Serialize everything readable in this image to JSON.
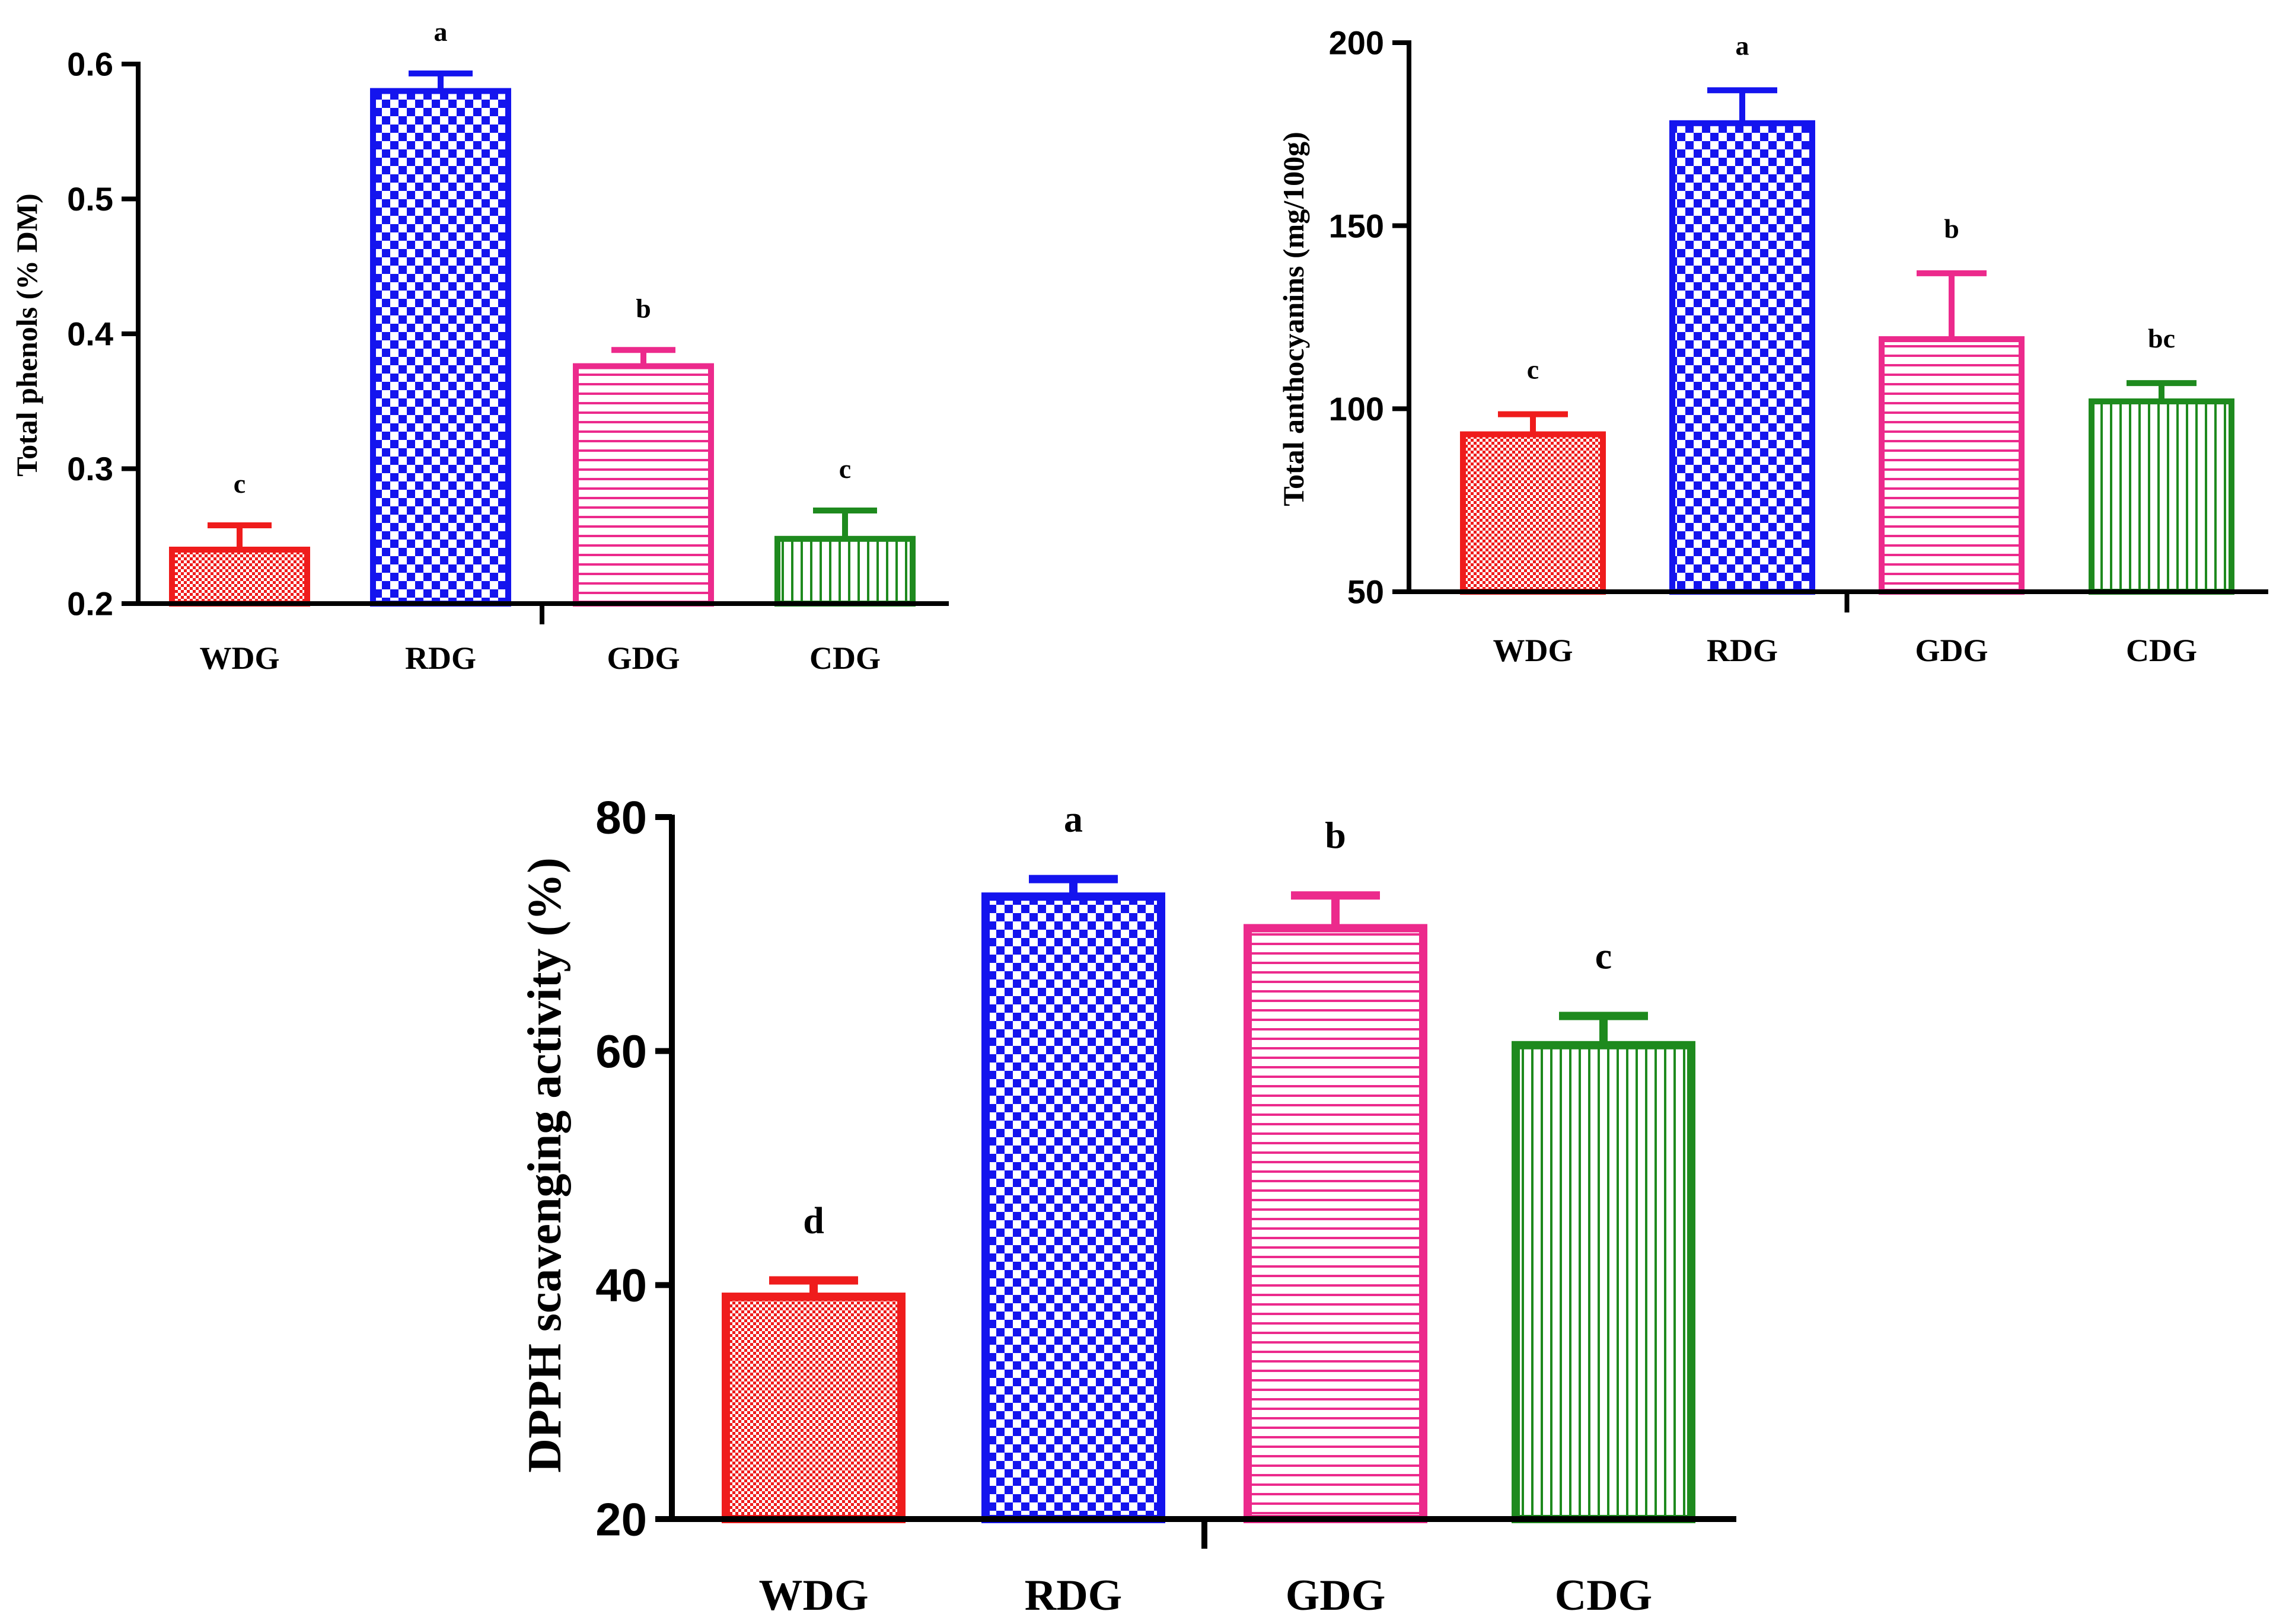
{
  "colors": {
    "WDG": "#ef1c1c",
    "RDG": "#1414ee",
    "GDG": "#ec2a8c",
    "CDG": "#1e8a1e",
    "axis": "#000000"
  },
  "chart_data": [
    {
      "id": "phenols",
      "type": "bar",
      "title": "",
      "xlabel": "",
      "ylabel": "Total phenols (% DM)",
      "categories": [
        "WDG",
        "RDG",
        "GDG",
        "CDG"
      ],
      "values": [
        0.24,
        0.58,
        0.376,
        0.248
      ],
      "errors": [
        0.018,
        0.013,
        0.012,
        0.021
      ],
      "letters": [
        "c",
        "a",
        "b",
        "c"
      ],
      "patterns": [
        "dots",
        "checker",
        "hlines",
        "vlines"
      ],
      "ylim": [
        0.2,
        0.6
      ],
      "yticks": [
        0.2,
        0.3,
        0.4,
        0.5,
        0.6
      ],
      "ytick_labels": [
        "0.2",
        "0.3",
        "0.4",
        "0.5",
        "0.6"
      ],
      "grid": false
    },
    {
      "id": "anthocyanins",
      "type": "bar",
      "title": "",
      "xlabel": "",
      "ylabel": "Total anthocyanins (mg/100g)",
      "categories": [
        "WDG",
        "RDG",
        "GDG",
        "CDG"
      ],
      "values": [
        93,
        178,
        119,
        102
      ],
      "errors": [
        5.5,
        9,
        18,
        5
      ],
      "letters": [
        "c",
        "a",
        "b",
        "bc"
      ],
      "patterns": [
        "dots",
        "checker",
        "hlines",
        "vlines"
      ],
      "ylim": [
        50,
        200
      ],
      "yticks": [
        50,
        100,
        150,
        200
      ],
      "ytick_labels": [
        "50",
        "100",
        "150",
        "200"
      ],
      "grid": false
    },
    {
      "id": "dpph",
      "type": "bar",
      "title": "",
      "xlabel": "",
      "ylabel": "DPPH scavenging activity (%)",
      "categories": [
        "WDG",
        "RDG",
        "GDG",
        "CDG"
      ],
      "values": [
        39,
        73.2,
        70.5,
        60.5
      ],
      "errors": [
        1.4,
        1.5,
        2.8,
        2.5
      ],
      "letters": [
        "d",
        "a",
        "b",
        "c"
      ],
      "patterns": [
        "dots",
        "checker",
        "hlines",
        "vlines"
      ],
      "ylim": [
        20,
        80
      ],
      "yticks": [
        20,
        40,
        60,
        80
      ],
      "ytick_labels": [
        "20",
        "40",
        "60",
        "80"
      ],
      "grid": false
    }
  ]
}
